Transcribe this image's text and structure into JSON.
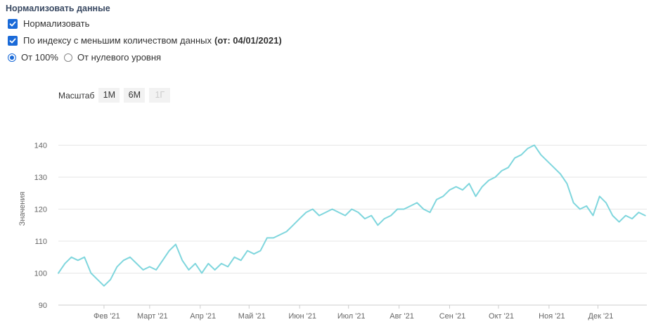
{
  "panel": {
    "title": "Нормализовать данные",
    "normalize_label": "Нормализовать",
    "by_index_label": "По индексу с меньшим количеством данных",
    "by_index_date": "(от: 04/01/2021)",
    "from_100_label": "От 100%",
    "from_zero_label": "От нулевого уровня"
  },
  "zoom": {
    "label": "Масштаб",
    "buttons": [
      "1М",
      "6М",
      "1Г"
    ]
  },
  "colors": {
    "line": "#7fd6dd",
    "accent": "#1a6ad8",
    "grid": "#e6e6e6"
  },
  "icons": [
    "checkmark-icon",
    "radio-icon"
  ],
  "chart_data": {
    "type": "line",
    "ylabel": "Значения",
    "ylim": [
      90,
      142
    ],
    "yticks": [
      90,
      100,
      110,
      120,
      130,
      140
    ],
    "xticks": [
      "Фев '21",
      "Март '21",
      "Апр '21",
      "Май '21",
      "Июн '21",
      "Июл '21",
      "Авг '21",
      "Сен '21",
      "Окт '21",
      "Ноя '21",
      "Дек '21"
    ],
    "grid": true,
    "series": [
      {
        "x": [
          "2021-01-04",
          "2021-01-08",
          "2021-01-12",
          "2021-01-16",
          "2021-01-20",
          "2021-01-24",
          "2021-01-28",
          "2021-02-01",
          "2021-02-05",
          "2021-02-09",
          "2021-02-13",
          "2021-02-17",
          "2021-02-21",
          "2021-02-25",
          "2021-03-01",
          "2021-03-05",
          "2021-03-09",
          "2021-03-13",
          "2021-03-17",
          "2021-03-21",
          "2021-03-25",
          "2021-03-29",
          "2021-04-02",
          "2021-04-06",
          "2021-04-10",
          "2021-04-14",
          "2021-04-18",
          "2021-04-22",
          "2021-04-26",
          "2021-04-30",
          "2021-05-04",
          "2021-05-08",
          "2021-05-12",
          "2021-05-16",
          "2021-05-20",
          "2021-05-24",
          "2021-05-28",
          "2021-06-01",
          "2021-06-05",
          "2021-06-09",
          "2021-06-13",
          "2021-06-17",
          "2021-06-21",
          "2021-06-25",
          "2021-06-29",
          "2021-07-03",
          "2021-07-07",
          "2021-07-11",
          "2021-07-15",
          "2021-07-19",
          "2021-07-23",
          "2021-07-27",
          "2021-07-31",
          "2021-08-04",
          "2021-08-08",
          "2021-08-12",
          "2021-08-16",
          "2021-08-20",
          "2021-08-24",
          "2021-08-28",
          "2021-09-01",
          "2021-09-05",
          "2021-09-09",
          "2021-09-13",
          "2021-09-17",
          "2021-09-21",
          "2021-09-25",
          "2021-09-29",
          "2021-10-03",
          "2021-10-07",
          "2021-10-11",
          "2021-10-15",
          "2021-10-19",
          "2021-10-23",
          "2021-10-27",
          "2021-10-31",
          "2021-11-04",
          "2021-11-08",
          "2021-11-12",
          "2021-11-16",
          "2021-11-20",
          "2021-11-24",
          "2021-11-28",
          "2021-12-02",
          "2021-12-06",
          "2021-12-10",
          "2021-12-14",
          "2021-12-18",
          "2021-12-22",
          "2021-12-26",
          "2021-12-30"
        ],
        "y": [
          100,
          103,
          105,
          104,
          105,
          100,
          98,
          96,
          98,
          102,
          104,
          105,
          103,
          101,
          102,
          101,
          104,
          107,
          109,
          104,
          101,
          103,
          100,
          103,
          101,
          103,
          102,
          105,
          104,
          107,
          106,
          107,
          111,
          111,
          112,
          113,
          115,
          117,
          119,
          120,
          118,
          119,
          120,
          119,
          118,
          120,
          119,
          117,
          118,
          115,
          117,
          118,
          120,
          120,
          121,
          122,
          120,
          119,
          123,
          124,
          126,
          127,
          126,
          128,
          124,
          127,
          129,
          130,
          132,
          133,
          136,
          137,
          139,
          140,
          137,
          135,
          133,
          131,
          128,
          122,
          120,
          121,
          118,
          124,
          122,
          118,
          116,
          118,
          117,
          119,
          118
        ]
      }
    ]
  }
}
